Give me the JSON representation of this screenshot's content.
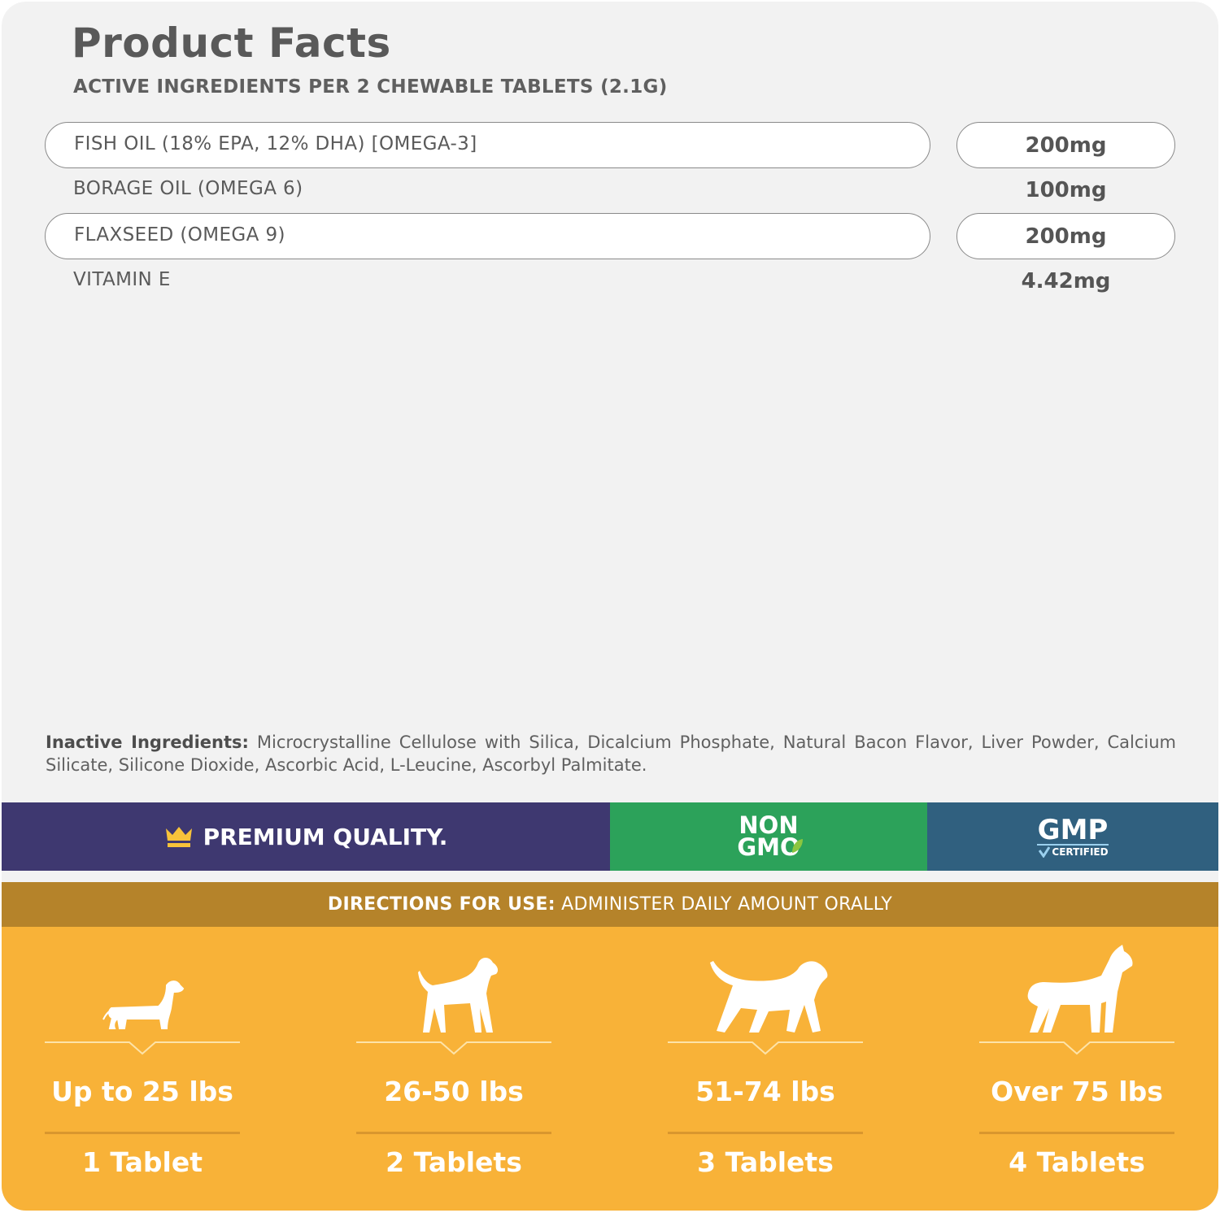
{
  "title": "Product Facts",
  "subtitle": "ACTIVE INGREDIENTS PER 2 CHEWABLE TABLETS (2.1G)",
  "ingredients": [
    {
      "name": "FISH OIL (18% EPA, 12% DHA) [OMEGA-3]",
      "amount": "200mg"
    },
    {
      "name": "BORAGE OIL (OMEGA 6)",
      "amount": "100mg"
    },
    {
      "name": "FLAXSEED (OMEGA 9)",
      "amount": "200mg"
    },
    {
      "name": "VITAMIN E",
      "amount": "4.42mg"
    }
  ],
  "inactive": {
    "label": "Inactive Ingredients:",
    "text": " Microcrystalline Cellulose with Silica, Dicalcium Phosphate, Natural Bacon Flavor, Liver Powder, Calcium Silicate, Silicone Dioxide, Ascorbic Acid, L-Leucine, Ascorbyl Palmitate."
  },
  "badges": {
    "premium": "PREMIUM QUALITY.",
    "non": "NON",
    "gmo": "GMO",
    "gmp": "GMP",
    "certified": "CERTIFIED",
    "icons": [
      "crown-icon",
      "leaf-icon",
      "check-shield-icon"
    ]
  },
  "colors": {
    "purple": "#3e3870",
    "green": "#2ca25a",
    "blue": "#30607f",
    "gold": "#b5832a",
    "orange": "#f8b238"
  },
  "directions": {
    "label": "DIRECTIONS FOR USE:",
    "text": " ADMINISTER DAILY AMOUNT ORALLY"
  },
  "dosage": [
    {
      "weight": "Up to 25 lbs",
      "amount": "1 Tablet",
      "icon": "dachshund-icon"
    },
    {
      "weight": "26-50 lbs",
      "amount": "2 Tablets",
      "icon": "medium-dog-icon"
    },
    {
      "weight": "51-74 lbs",
      "amount": "3 Tablets",
      "icon": "retriever-icon"
    },
    {
      "weight": "Over 75 lbs",
      "amount": "4 Tablets",
      "icon": "boxer-icon"
    }
  ]
}
